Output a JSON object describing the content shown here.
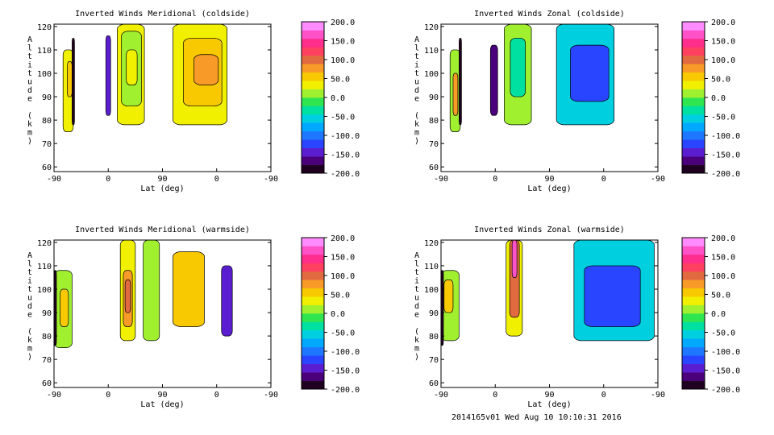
{
  "footer": "2014165v01 Wed Aug 10 10:10:31 2016",
  "colorbar": {
    "tick_labels": [
      "200.0",
      "150.0",
      "100.0",
      "50.0",
      "0.0",
      "-50.0",
      "-100.0",
      "-150.0",
      "-200.0"
    ],
    "range": [
      -200,
      200
    ],
    "colors": [
      "#200020",
      "#4a007a",
      "#5a1ed0",
      "#2a45ff",
      "#1e78ff",
      "#00a8ff",
      "#00cfe0",
      "#00e0a0",
      "#30e650",
      "#a0f030",
      "#f0f000",
      "#f8c800",
      "#f89a28",
      "#e26a40",
      "#ff4060",
      "#ff2e8c",
      "#ff52c8",
      "#ff8cff"
    ]
  },
  "chart_data": [
    {
      "type": "heatmap",
      "title": "Inverted Winds Meridional (coldside)",
      "xlabel": "Lat (deg)",
      "ylabel": "Altitude (km)",
      "x_ticks": [
        "-90",
        "0",
        "90",
        "0",
        "-90"
      ],
      "y_ticks": [
        "60",
        "70",
        "80",
        "90",
        "100",
        "110",
        "120"
      ],
      "ylim": [
        58,
        121
      ],
      "cells": [
        {
          "x": [
            -75,
            -58
          ],
          "y": [
            75,
            110
          ],
          "value": 30
        },
        {
          "x": [
            -68,
            -60
          ],
          "y": [
            90,
            105
          ],
          "value": 60
        },
        {
          "x": [
            15,
            60
          ],
          "y": [
            78,
            121
          ],
          "value": 40
        },
        {
          "x": [
            22,
            55
          ],
          "y": [
            86,
            118
          ],
          "value": 10
        },
        {
          "x": [
            30,
            48
          ],
          "y": [
            95,
            110
          ],
          "value": 40
        },
        {
          "x": [
            64,
            95
          ],
          "y": [
            78,
            121
          ],
          "value": 30
        },
        {
          "x": [
            70,
            92
          ],
          "y": [
            86,
            115
          ],
          "value": 60
        },
        {
          "x": [
            76,
            90
          ],
          "y": [
            95,
            108
          ],
          "value": 80
        },
        {
          "x": [
            -4,
            4
          ],
          "y": [
            82,
            116
          ],
          "value": -140
        },
        {
          "x": [
            -60,
            -56
          ],
          "y": [
            78,
            115
          ],
          "value": -200
        }
      ]
    },
    {
      "type": "heatmap",
      "title": "Inverted Winds Zonal (coldside)",
      "xlabel": "Lat (deg)",
      "ylabel": "Altitude (km)",
      "x_ticks": [
        "-90",
        "0",
        "90",
        "0",
        "-90"
      ],
      "y_ticks": [
        "60",
        "70",
        "80",
        "90",
        "100",
        "110",
        "120"
      ],
      "ylim": [
        58,
        121
      ],
      "cells": [
        {
          "x": [
            -75,
            -58
          ],
          "y": [
            75,
            110
          ],
          "value": 20
        },
        {
          "x": [
            -70,
            -62
          ],
          "y": [
            82,
            100
          ],
          "value": 70
        },
        {
          "x": [
            15,
            60
          ],
          "y": [
            78,
            121
          ],
          "value": 0
        },
        {
          "x": [
            25,
            50
          ],
          "y": [
            90,
            115
          ],
          "value": -40
        },
        {
          "x": [
            62,
            95
          ],
          "y": [
            78,
            121
          ],
          "value": -60
        },
        {
          "x": [
            70,
            92
          ],
          "y": [
            88,
            112
          ],
          "value": -130
        },
        {
          "x": [
            -8,
            4
          ],
          "y": [
            82,
            112
          ],
          "value": -160
        },
        {
          "x": [
            -60,
            -56
          ],
          "y": [
            78,
            115
          ],
          "value": -200
        }
      ]
    },
    {
      "type": "heatmap",
      "title": "Inverted Winds Meridional (warmside)",
      "xlabel": "Lat (deg)",
      "ylabel": "Altitude (km)",
      "x_ticks": [
        "-90",
        "0",
        "90",
        "0",
        "-90"
      ],
      "y_ticks": [
        "60",
        "70",
        "80",
        "90",
        "100",
        "110",
        "120"
      ],
      "ylim": [
        58,
        121
      ],
      "cells": [
        {
          "x": [
            -90,
            -60
          ],
          "y": [
            75,
            108
          ],
          "value": 20
        },
        {
          "x": [
            -80,
            -66
          ],
          "y": [
            84,
            100
          ],
          "value": 50
        },
        {
          "x": [
            20,
            45
          ],
          "y": [
            78,
            121
          ],
          "value": 40
        },
        {
          "x": [
            25,
            40
          ],
          "y": [
            84,
            108
          ],
          "value": 80
        },
        {
          "x": [
            28,
            37
          ],
          "y": [
            90,
            104
          ],
          "value": 110
        },
        {
          "x": [
            58,
            85
          ],
          "y": [
            78,
            121
          ],
          "value": 10
        },
        {
          "x": [
            64,
            82
          ],
          "y": [
            84,
            116
          ],
          "value": 60
        },
        {
          "x": [
            -8,
            -26
          ],
          "y": [
            80,
            110
          ],
          "value": -150
        },
        {
          "x": [
            -86,
            -90
          ],
          "y": [
            76,
            108
          ],
          "value": -190
        }
      ]
    },
    {
      "type": "heatmap",
      "title": "Inverted Winds Zonal (warmside)",
      "xlabel": "Lat (deg)",
      "ylabel": "Altitude (km)",
      "x_ticks": [
        "-90",
        "0",
        "90",
        "0",
        "-90"
      ],
      "y_ticks": [
        "60",
        "70",
        "80",
        "90",
        "100",
        "110",
        "120"
      ],
      "ylim": [
        58,
        121
      ],
      "cells": [
        {
          "x": [
            -90,
            -60
          ],
          "y": [
            78,
            108
          ],
          "value": 20
        },
        {
          "x": [
            -85,
            -70
          ],
          "y": [
            90,
            104
          ],
          "value": 60
        },
        {
          "x": [
            18,
            45
          ],
          "y": [
            80,
            121
          ],
          "value": 30
        },
        {
          "x": [
            24,
            40
          ],
          "y": [
            88,
            121
          ],
          "value": 90
        },
        {
          "x": [
            28,
            36
          ],
          "y": [
            105,
            121
          ],
          "value": 160
        },
        {
          "x": [
            72,
            118
          ],
          "y": [
            78,
            121
          ],
          "value": -60
        },
        {
          "x": [
            78,
            110
          ],
          "y": [
            84,
            110
          ],
          "value": -120
        },
        {
          "x": [
            -86,
            -90
          ],
          "y": [
            76,
            108
          ],
          "value": -180
        }
      ]
    }
  ]
}
